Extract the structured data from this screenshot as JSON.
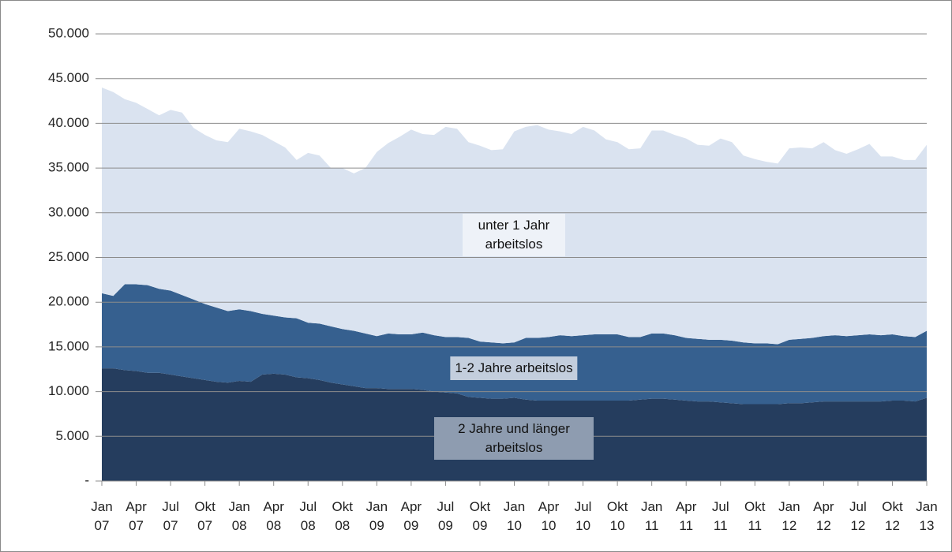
{
  "chart_data": {
    "type": "stacked-area",
    "categories": [
      "Jan 07",
      null,
      null,
      "Apr 07",
      null,
      null,
      "Jul 07",
      null,
      null,
      "Okt 07",
      null,
      null,
      "Jan 08",
      null,
      null,
      "Apr 08",
      null,
      null,
      "Jul 08",
      null,
      null,
      "Okt 08",
      null,
      null,
      "Jan 09",
      null,
      null,
      "Apr 09",
      null,
      null,
      "Jul 09",
      null,
      null,
      "Okt 09",
      null,
      null,
      "Jan 10",
      null,
      null,
      "Apr 10",
      null,
      null,
      "Jul 10",
      null,
      null,
      "Okt 10",
      null,
      null,
      "Jan 11",
      null,
      null,
      "Apr 11",
      null,
      null,
      "Jul 11",
      null,
      null,
      "Okt 11",
      null,
      null,
      "Jan 12",
      null,
      null,
      "Apr 12",
      null,
      null,
      "Jul 12",
      null,
      null,
      "Okt 12",
      null,
      null,
      "Jan 13"
    ],
    "series": [
      {
        "name": "2 Jahre und länger arbeitslos",
        "color": "#253d5e",
        "values": [
          12600,
          12600,
          12400,
          12300,
          12100,
          12100,
          11900,
          11700,
          11500,
          11300,
          11100,
          11000,
          11200,
          11100,
          11900,
          12000,
          11900,
          11600,
          11500,
          11300,
          11000,
          10800,
          10600,
          10400,
          10400,
          10300,
          10300,
          10300,
          10200,
          10000,
          9900,
          9800,
          9400,
          9300,
          9200,
          9200,
          9300,
          9100,
          9000,
          9000,
          9000,
          9000,
          9000,
          9000,
          9000,
          9000,
          9000,
          9100,
          9200,
          9200,
          9100,
          9000,
          8900,
          8900,
          8800,
          8700,
          8600,
          8600,
          8600,
          8600,
          8700,
          8700,
          8800,
          8900,
          8900,
          8900,
          8900,
          8900,
          8900,
          9000,
          9000,
          8900,
          9300
        ]
      },
      {
        "name": "1-2 Jahre arbeitslos",
        "color": "#36608f",
        "values": [
          8400,
          8100,
          9600,
          9700,
          9800,
          9400,
          9400,
          9100,
          8800,
          8500,
          8300,
          8000,
          8000,
          7900,
          6800,
          6500,
          6400,
          6600,
          6200,
          6300,
          6300,
          6200,
          6200,
          6100,
          5800,
          6200,
          6100,
          6100,
          6400,
          6300,
          6200,
          6300,
          6600,
          6300,
          6300,
          6200,
          6200,
          6900,
          7000,
          7100,
          7300,
          7200,
          7300,
          7400,
          7400,
          7400,
          7100,
          7000,
          7300,
          7300,
          7200,
          7000,
          7000,
          6900,
          7000,
          7000,
          6900,
          6800,
          6800,
          6700,
          7100,
          7200,
          7200,
          7300,
          7400,
          7300,
          7400,
          7500,
          7400,
          7400,
          7200,
          7200,
          7500
        ]
      },
      {
        "name": "unter 1 Jahr arbeitslos",
        "color": "#dae3f0",
        "values": [
          23000,
          22800,
          20700,
          20300,
          19700,
          19400,
          20200,
          20400,
          19200,
          18900,
          18700,
          18900,
          20200,
          20100,
          20000,
          19500,
          19000,
          17700,
          19000,
          18800,
          17700,
          18000,
          17600,
          18500,
          20600,
          21300,
          22100,
          22900,
          22200,
          22400,
          23500,
          23300,
          21900,
          21900,
          21500,
          21700,
          23600,
          23600,
          23800,
          23200,
          22800,
          22600,
          23300,
          22800,
          21800,
          21500,
          21000,
          21100,
          22700,
          22700,
          22400,
          22300,
          21700,
          21700,
          22500,
          22200,
          20900,
          20600,
          20300,
          20200,
          21400,
          21400,
          21200,
          21700,
          20700,
          20400,
          20800,
          21300,
          20000,
          19900,
          19700,
          19800,
          20800
        ]
      }
    ],
    "ylim": [
      0,
      50000
    ],
    "yticks": [
      {
        "value": 0,
        "label": "-"
      },
      {
        "value": 5000,
        "label": "5.000"
      },
      {
        "value": 10000,
        "label": "10.000"
      },
      {
        "value": 15000,
        "label": "15.000"
      },
      {
        "value": 20000,
        "label": "20.000"
      },
      {
        "value": 25000,
        "label": "25.000"
      },
      {
        "value": 30000,
        "label": "30.000"
      },
      {
        "value": 35000,
        "label": "35.000"
      },
      {
        "value": 40000,
        "label": "40.000"
      },
      {
        "value": 45000,
        "label": "45.000"
      },
      {
        "value": 50000,
        "label": "50.000"
      }
    ],
    "grid": true
  }
}
